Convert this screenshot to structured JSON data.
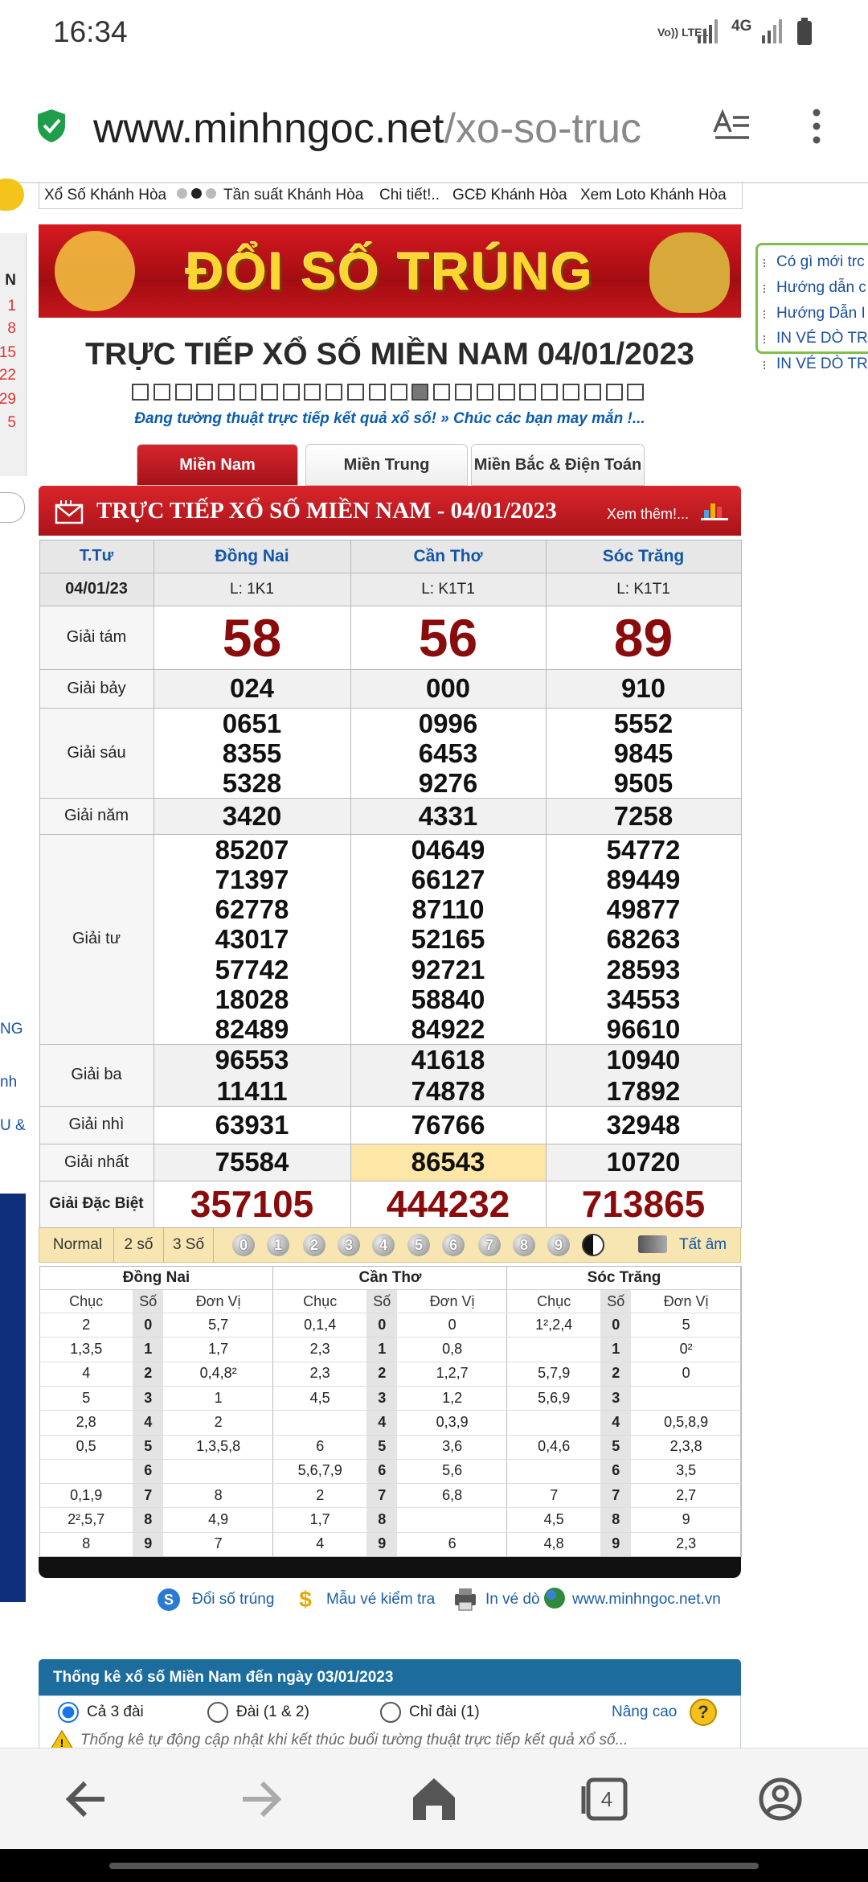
{
  "status_bar": {
    "time": "16:34",
    "network": "Vo)) LTE1",
    "data": "4G"
  },
  "browser": {
    "url_domain": "www.minhngoc.net",
    "url_path": "/xo-so-truc",
    "tab_count": "4"
  },
  "top_nav": [
    "Xổ Số Khánh Hòa",
    "Tần suất Khánh Hòa",
    "Chi tiết!..",
    "GCĐ Khánh Hòa",
    "Xem Loto Khánh Hòa"
  ],
  "left_fragments": {
    "calendar": [
      "N",
      "1",
      "8",
      "15",
      "22",
      "29",
      "5"
    ],
    "links": [
      "NG",
      "nh",
      "U &"
    ]
  },
  "right_panel": [
    "Có gì mới trc",
    "Hướng dẫn c",
    "Hướng Dẫn I",
    "IN VÉ DÒ TR",
    "IN VÉ DÒ TR"
  ],
  "banner": "ĐỔI SỐ TRÚNG",
  "heading": "TRỰC TIẾP XỔ SỐ MIỀN NAM 04/01/2023",
  "live_note": "Đang tường thuật trực tiếp kết quả xổ số! » Chúc các bạn may mắn !...",
  "tabs": [
    "Miền Nam",
    "Miền Trung",
    "Miền Bắc & Điện Toán"
  ],
  "results": {
    "title": "TRỰC TIẾP XỔ SỐ MIỀN NAM - 04/01/2023",
    "more": "Xem thêm!...",
    "day": "T.Tư",
    "date": "04/01/23",
    "provinces": [
      {
        "name": "Đồng Nai",
        "code": "L: 1K1"
      },
      {
        "name": "Cần Thơ",
        "code": "L: K1T1"
      },
      {
        "name": "Sóc Trăng",
        "code": "L: K1T1"
      }
    ],
    "prizes": [
      {
        "label": "Giải tám",
        "values": [
          [
            "58"
          ],
          [
            "56"
          ],
          [
            "89"
          ]
        ]
      },
      {
        "label": "Giải bảy",
        "values": [
          [
            "024"
          ],
          [
            "000"
          ],
          [
            "910"
          ]
        ]
      },
      {
        "label": "Giải sáu",
        "values": [
          [
            "0651",
            "8355",
            "5328"
          ],
          [
            "0996",
            "6453",
            "9276"
          ],
          [
            "5552",
            "9845",
            "9505"
          ]
        ]
      },
      {
        "label": "Giải năm",
        "values": [
          [
            "3420"
          ],
          [
            "4331"
          ],
          [
            "7258"
          ]
        ]
      },
      {
        "label": "Giải tư",
        "values": [
          [
            "85207",
            "71397",
            "62778",
            "43017",
            "57742",
            "18028",
            "82489"
          ],
          [
            "04649",
            "66127",
            "87110",
            "52165",
            "92721",
            "58840",
            "84922"
          ],
          [
            "54772",
            "89449",
            "49877",
            "68263",
            "28593",
            "34553",
            "96610"
          ]
        ]
      },
      {
        "label": "Giải ba",
        "values": [
          [
            "96553",
            "11411"
          ],
          [
            "41618",
            "74878"
          ],
          [
            "10940",
            "17892"
          ]
        ]
      },
      {
        "label": "Giải nhì",
        "values": [
          [
            "63931"
          ],
          [
            "76766"
          ],
          [
            "32948"
          ]
        ]
      },
      {
        "label": "Giải nhất",
        "values": [
          [
            "75584"
          ],
          [
            "86543"
          ],
          [
            "10720"
          ]
        ]
      },
      {
        "label": "Giải Đặc Biệt",
        "values": [
          [
            "357105"
          ],
          [
            "444232"
          ],
          [
            "713865"
          ]
        ]
      }
    ]
  },
  "toolbar": {
    "modes": [
      "Normal",
      "2 số",
      "3 Số"
    ],
    "digits": [
      "0",
      "1",
      "2",
      "3",
      "4",
      "5",
      "6",
      "7",
      "8",
      "9"
    ],
    "mute": "Tất âm"
  },
  "loto": {
    "headers": [
      "Chục",
      "Số",
      "Đơn Vị"
    ],
    "provinces": [
      {
        "name": "Đồng Nai",
        "rows": [
          [
            "2",
            "0",
            "5,7"
          ],
          [
            "1,3,5",
            "1",
            "1,7"
          ],
          [
            "4",
            "2",
            "0,4,8²"
          ],
          [
            "5",
            "3",
            "1"
          ],
          [
            "2,8",
            "4",
            "2"
          ],
          [
            "0,5",
            "5",
            "1,3,5,8"
          ],
          [
            null,
            "6",
            null
          ],
          [
            "0,1,9",
            "7",
            "8"
          ],
          [
            "2²,5,7",
            "8",
            "4,9"
          ],
          [
            "8",
            "9",
            "7"
          ]
        ]
      },
      {
        "name": "Cần Thơ",
        "rows": [
          [
            "0,1,4",
            "0",
            "0"
          ],
          [
            "2,3",
            "1",
            "0,8"
          ],
          [
            "2,3",
            "2",
            "1,2,7"
          ],
          [
            "4,5",
            "3",
            "1,2"
          ],
          [
            null,
            "4",
            "0,3,9"
          ],
          [
            "6",
            "5",
            "3,6"
          ],
          [
            "5,6,7,9",
            "6",
            "5,6"
          ],
          [
            "2",
            "7",
            "6,8"
          ],
          [
            "1,7",
            "8",
            null
          ],
          [
            "4",
            "9",
            "6"
          ]
        ]
      },
      {
        "name": "Sóc Trăng",
        "rows": [
          [
            "1²,2,4",
            "0",
            "5"
          ],
          [
            null,
            "1",
            "0²"
          ],
          [
            "5,7,9",
            "2",
            "0"
          ],
          [
            "5,6,9",
            "3",
            null
          ],
          [
            null,
            "4",
            "0,5,8,9"
          ],
          [
            "0,4,6",
            "5",
            "2,3,8"
          ],
          [
            null,
            "6",
            "3,5"
          ],
          [
            "7",
            "7",
            "2,7"
          ],
          [
            "4,5",
            "8",
            "9"
          ],
          [
            "4,8",
            "9",
            "2,3"
          ]
        ]
      }
    ]
  },
  "footer_links": [
    "Đổi số trúng",
    "Mẫu vé kiểm tra",
    "In vé dò",
    "www.minhngoc.net.vn"
  ],
  "stats": {
    "title": "Thống kê xổ số Miền Nam đến ngày 03/01/2023",
    "options": [
      "Cả 3 đài",
      "Đài (1 & 2)",
      "Chỉ đài (1)"
    ],
    "advanced": "Nâng cao",
    "help": "?",
    "note": "Thống kê tự động cập nhật khi kết thúc buổi tường thuật trực tiếp kết quả xổ số..."
  }
}
